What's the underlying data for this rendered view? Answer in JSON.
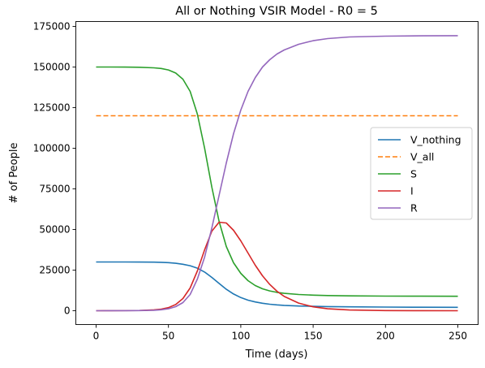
{
  "chart_data": {
    "type": "line",
    "title": "All or Nothing VSIR Model - R0 = 5",
    "xlabel": "Time (days)",
    "ylabel": "# of People",
    "xlim": [
      -14,
      264
    ],
    "ylim": [
      -8500,
      178000
    ],
    "xticks": [
      0,
      50,
      100,
      150,
      200,
      250
    ],
    "yticks": [
      0,
      25000,
      50000,
      75000,
      100000,
      125000,
      150000,
      175000
    ],
    "grid": false,
    "legend_position": "center-right",
    "x": [
      0,
      10,
      20,
      30,
      40,
      45,
      50,
      55,
      60,
      65,
      70,
      75,
      80,
      85,
      90,
      95,
      100,
      105,
      110,
      115,
      120,
      125,
      130,
      140,
      150,
      160,
      175,
      200,
      225,
      250
    ],
    "series": [
      {
        "name": "V_nothing",
        "color": "#1f77b4",
        "dash": "solid",
        "values": [
          30000,
          30000,
          30000,
          29990,
          29900,
          29800,
          29600,
          29200,
          28600,
          27700,
          26200,
          23800,
          20500,
          16800,
          13200,
          10300,
          8100,
          6500,
          5400,
          4600,
          4000,
          3600,
          3300,
          2900,
          2700,
          2550,
          2400,
          2250,
          2150,
          2100
        ]
      },
      {
        "name": "V_all",
        "color": "#ff7f0e",
        "dash": "dashed",
        "values": [
          120000,
          120000,
          120000,
          120000,
          120000,
          120000,
          120000,
          120000,
          120000,
          120000,
          120000,
          120000,
          120000,
          120000,
          120000,
          120000,
          120000,
          120000,
          120000,
          120000,
          120000,
          120000,
          120000,
          120000,
          120000,
          120000,
          120000,
          120000,
          120000,
          120000
        ]
      },
      {
        "name": "S",
        "color": "#2ca02c",
        "dash": "solid",
        "values": [
          150000,
          150000,
          149950,
          149850,
          149500,
          149100,
          148200,
          146300,
          142500,
          135000,
          121000,
          100000,
          76000,
          55000,
          39500,
          29500,
          23000,
          18500,
          15500,
          13500,
          12200,
          11300,
          10700,
          10000,
          9600,
          9350,
          9150,
          9000,
          8950,
          8900
        ]
      },
      {
        "name": "I",
        "color": "#d62728",
        "dash": "solid",
        "values": [
          0,
          20,
          60,
          180,
          550,
          1000,
          1900,
          3800,
          7500,
          14000,
          24500,
          37500,
          49000,
          54500,
          54000,
          49500,
          43000,
          35500,
          28000,
          21500,
          16200,
          12000,
          8800,
          4700,
          2400,
          1200,
          450,
          100,
          20,
          5
        ]
      },
      {
        "name": "R",
        "color": "#9467bd",
        "dash": "solid",
        "values": [
          0,
          10,
          30,
          100,
          300,
          600,
          1200,
          2500,
          5000,
          10000,
          19500,
          33000,
          51000,
          71000,
          91000,
          109000,
          123500,
          135000,
          143500,
          150000,
          154500,
          158000,
          160500,
          164000,
          166200,
          167500,
          168500,
          169000,
          169200,
          169300
        ]
      }
    ]
  }
}
